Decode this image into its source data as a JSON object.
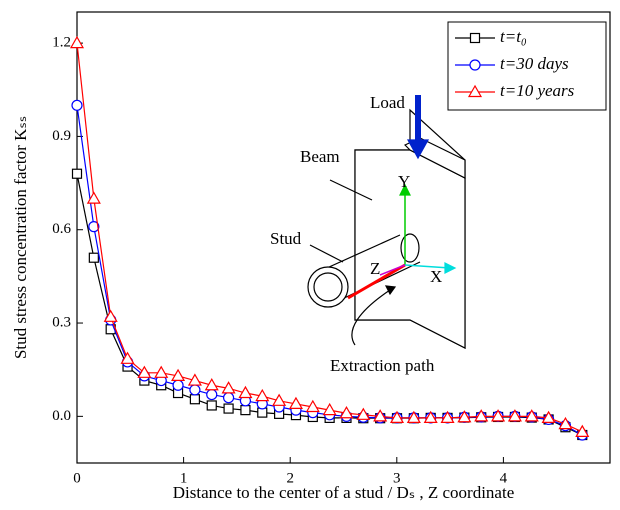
{
  "chart_data": {
    "type": "line",
    "x_label": "Distance to the center of a stud / Dₛ , Z coordinate",
    "y_label": "Stud stress concentration factor Kₛₛ",
    "x": [
      0,
      0.158,
      0.316,
      0.474,
      0.632,
      0.79,
      0.948,
      1.106,
      1.264,
      1.422,
      1.58,
      1.738,
      1.896,
      2.054,
      2.212,
      2.37,
      2.528,
      2.686,
      2.844,
      3.002,
      3.16,
      3.318,
      3.476,
      3.634,
      3.792,
      3.95,
      4.108,
      4.266,
      4.424,
      4.582,
      4.74
    ],
    "series": [
      {
        "name": "t=t₀",
        "color": "#000000",
        "marker": "square",
        "values": [
          0.78,
          0.51,
          0.28,
          0.16,
          0.115,
          0.1,
          0.075,
          0.055,
          0.035,
          0.025,
          0.02,
          0.012,
          0.008,
          0.004,
          -0.002,
          -0.005,
          -0.005,
          -0.006,
          -0.006,
          -0.006,
          -0.006,
          -0.005,
          -0.005,
          -0.004,
          -0.003,
          -0.002,
          -0.002,
          -0.004,
          -0.01,
          -0.035,
          -0.06
        ]
      },
      {
        "name": "t=30 days",
        "color": "#0000ff",
        "marker": "circle",
        "values": [
          1.0,
          0.61,
          0.31,
          0.175,
          0.13,
          0.115,
          0.1,
          0.085,
          0.07,
          0.06,
          0.05,
          0.04,
          0.03,
          0.02,
          0.012,
          0.005,
          0,
          -0.003,
          -0.005,
          -0.005,
          -0.005,
          -0.005,
          -0.005,
          -0.003,
          -0.002,
          0,
          0,
          -0.002,
          -0.01,
          -0.03,
          -0.06
        ]
      },
      {
        "name": "t=10 years",
        "color": "#ff0000",
        "marker": "triangle",
        "values": [
          1.2,
          0.7,
          0.32,
          0.185,
          0.14,
          0.14,
          0.13,
          0.115,
          0.1,
          0.09,
          0.075,
          0.065,
          0.05,
          0.04,
          0.03,
          0.02,
          0.01,
          0.005,
          0,
          -0.005,
          -0.005,
          -0.005,
          -0.005,
          -0.003,
          0,
          0,
          0,
          0,
          -0.005,
          -0.025,
          -0.05
        ]
      }
    ],
    "xlim": [
      0,
      5
    ],
    "xticks": [
      0,
      1,
      2,
      3,
      4
    ],
    "ylim": [
      -0.15,
      1.3
    ],
    "yticks": [
      {
        "value": 0,
        "label": "0.0"
      },
      0.3,
      0.6,
      0.9,
      1.2
    ],
    "legend": "upper right",
    "annotations": [
      "Load",
      "Beam",
      "Y",
      "Stud",
      "Z",
      "X",
      "Extraction path"
    ]
  }
}
